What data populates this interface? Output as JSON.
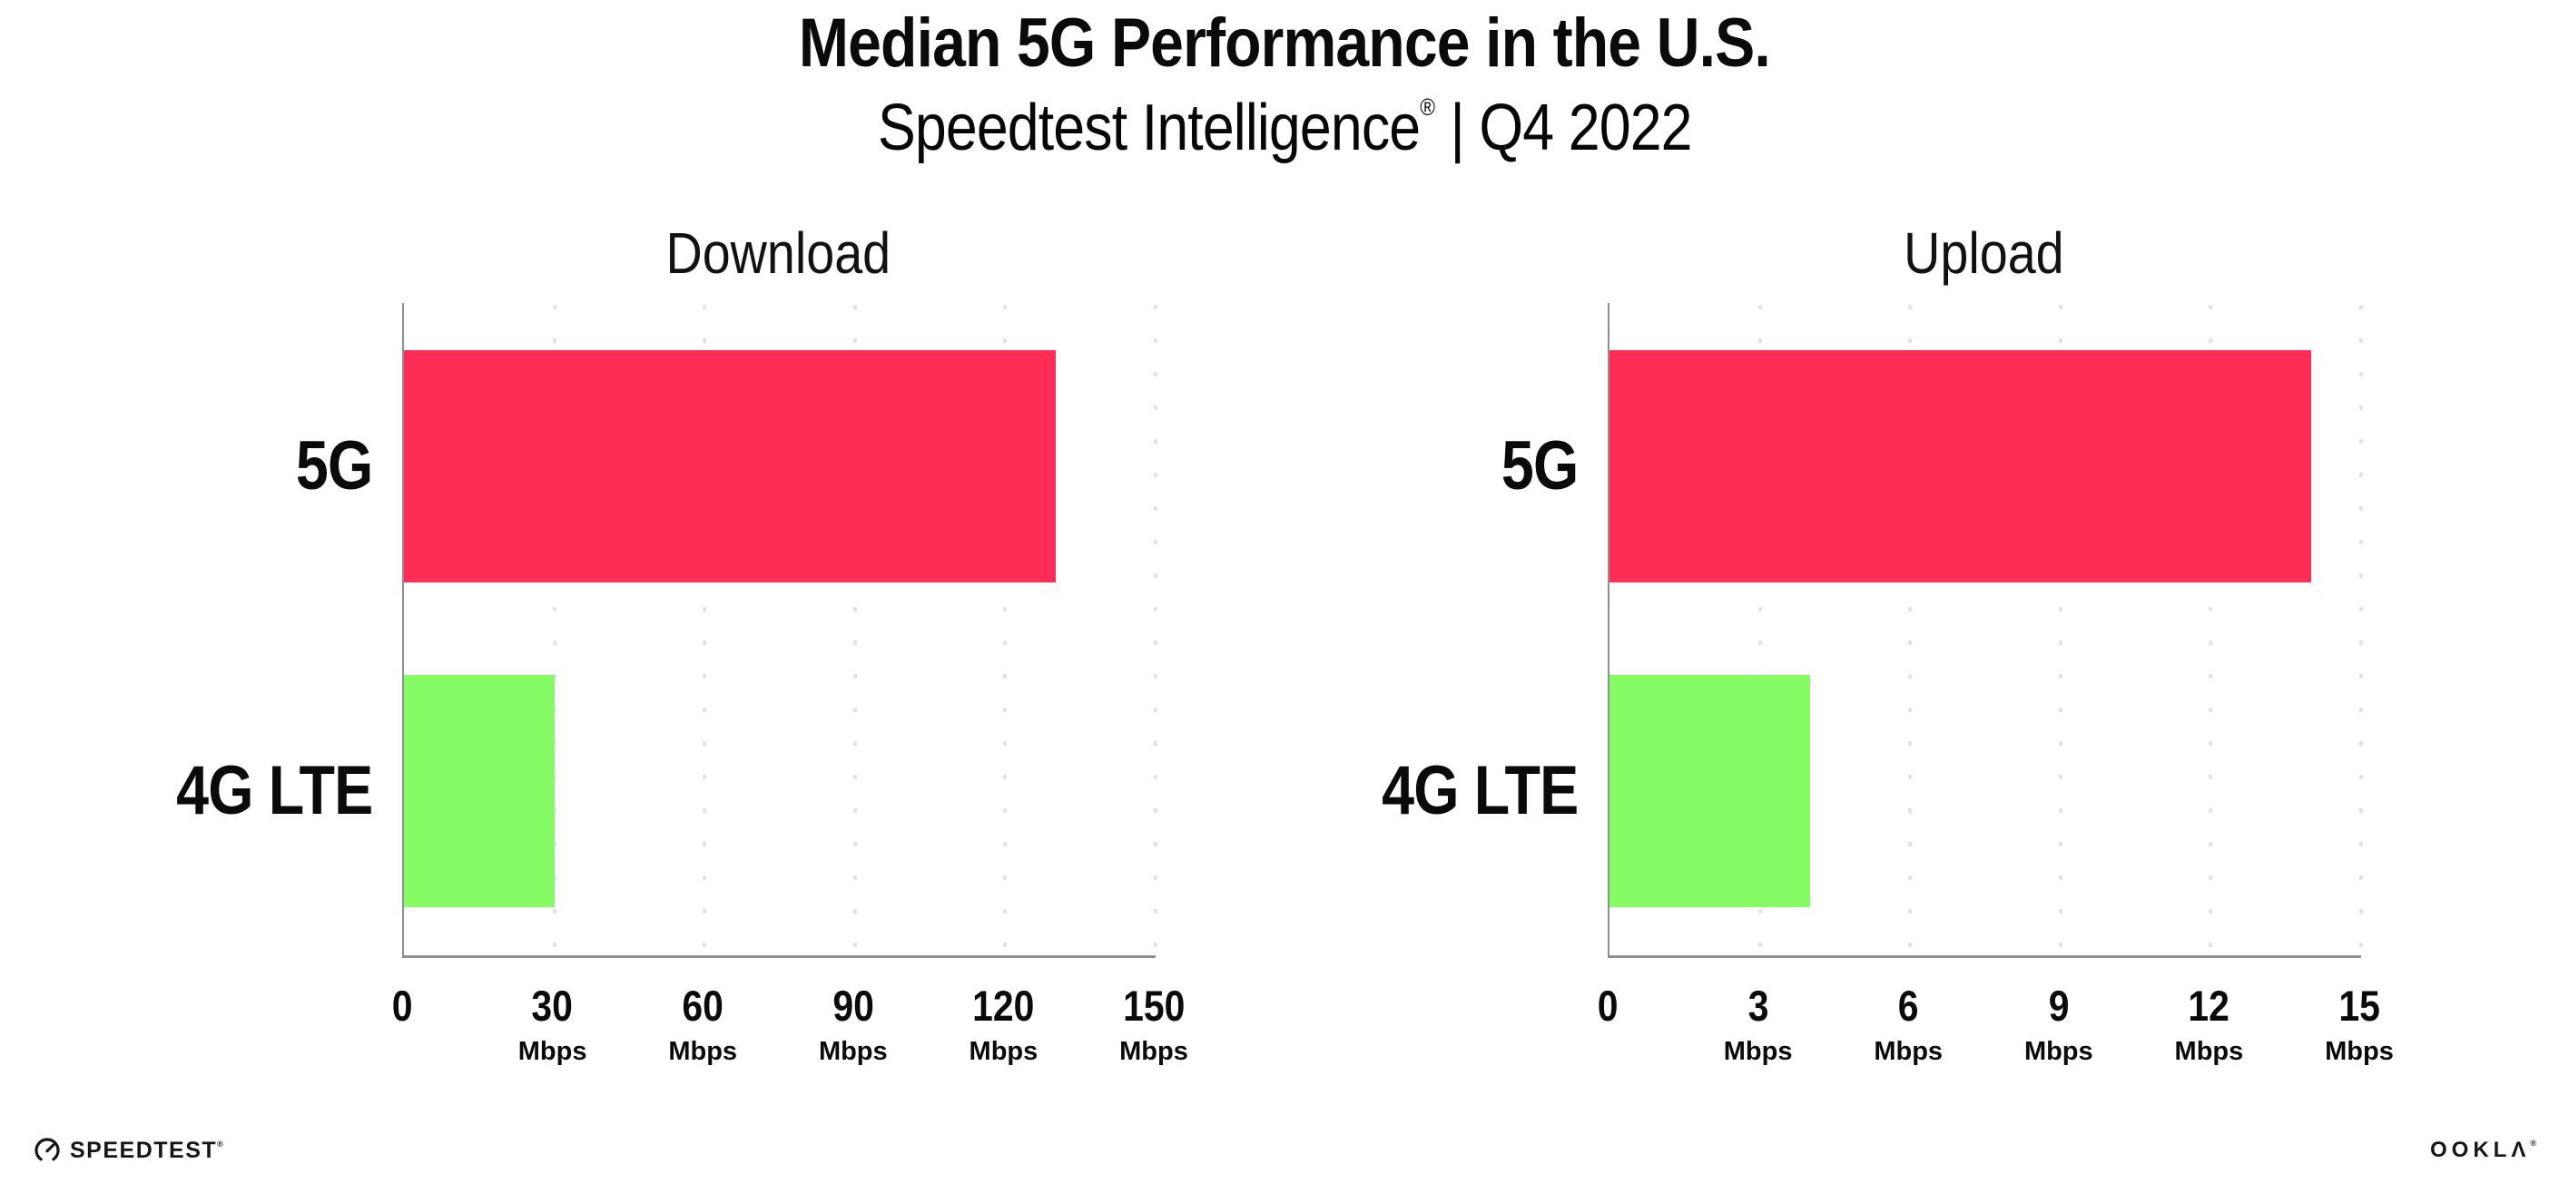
{
  "header": {
    "title": "Median 5G Performance in the U.S.",
    "subtitle_product": "Speedtest Intelligence",
    "registered_mark": "®",
    "subtitle_rest": " | Q4 2022"
  },
  "colors": {
    "bar_5g": "#FF2D56",
    "bar_4g_lte": "#85FB63",
    "axis": "#8f8f8f",
    "gridline": "#e2e2eb",
    "text": "#0a0a0a"
  },
  "chart_data": [
    {
      "type": "bar",
      "orientation": "horizontal",
      "title": "Download",
      "categories": [
        "5G",
        "4G LTE"
      ],
      "values": [
        130,
        30
      ],
      "unit": "Mbps",
      "xlim": [
        0,
        150
      ],
      "xticks": [
        0,
        30,
        60,
        90,
        120,
        150
      ],
      "bar_colors": [
        "#FF2D56",
        "#85FB63"
      ],
      "grid": "dotted-vertical",
      "legend": "none"
    },
    {
      "type": "bar",
      "orientation": "horizontal",
      "title": "Upload",
      "categories": [
        "5G",
        "4G LTE"
      ],
      "values": [
        14,
        4
      ],
      "unit": "Mbps",
      "xlim": [
        0,
        15
      ],
      "xticks": [
        0,
        3,
        6,
        9,
        12,
        15
      ],
      "bar_colors": [
        "#FF2D56",
        "#85FB63"
      ],
      "grid": "dotted-vertical",
      "legend": "none"
    }
  ],
  "footer": {
    "speedtest_label": "SPEEDTEST",
    "speedtest_mark": "®",
    "ookla_label": "OOKLΛ",
    "ookla_mark": "®"
  }
}
